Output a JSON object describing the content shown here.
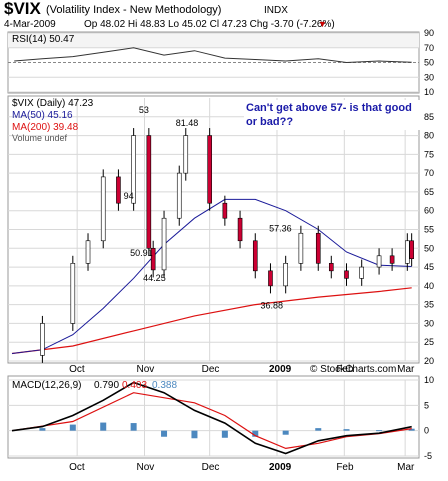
{
  "header": {
    "symbol": "$VIX",
    "name": "(Volatility Index - New Methodology)",
    "exchange": "INDX",
    "date": "4-Mar-2009",
    "quote": "Op 48.02  Hi 48.83  Lo 45.02  Cl 47.23  Chg -3.70 (-7.26%)",
    "chg_down_arrow": "▼",
    "watermark": "© StockCharts.com"
  },
  "colors": {
    "price_up": "#ffffff",
    "price_down": "#cc0033",
    "ma50": "#1a1a99",
    "ma200": "#dd1111",
    "macd_line": "#000000",
    "signal_line": "#dd1111",
    "histogram": "#4c88bf",
    "rsi_line": "#333333",
    "rsi_overbought_fill": "#5aa05a",
    "annotation_text": "#1a1aa8",
    "grid": "#d8d8d8"
  },
  "chart_data": [
    {
      "type": "line",
      "panel": "rsi",
      "label": "RSI(14) 50.47",
      "ylim": [
        10,
        90
      ],
      "y_ticks": [
        90,
        70,
        50,
        30,
        10
      ],
      "x": [
        "2008-09-02",
        "2008-09-15",
        "2008-09-29",
        "2008-10-13",
        "2008-10-27",
        "2008-11-10",
        "2008-11-24",
        "2008-12-08",
        "2008-12-22",
        "2009-01-05",
        "2009-01-20",
        "2009-02-02",
        "2009-02-17",
        "2009-03-04"
      ],
      "values": [
        52,
        55,
        58,
        64,
        70,
        60,
        66,
        56,
        54,
        52,
        55,
        50,
        52,
        50.47
      ]
    },
    {
      "type": "candlestick",
      "panel": "price",
      "legend": [
        "$VIX (Daily) 47.23",
        "MA(50) 45.16",
        "MA(200) 39.48",
        "Volume undef"
      ],
      "ylim": [
        20,
        90
      ],
      "y_ticks": [
        85,
        80,
        75,
        70,
        65,
        60,
        55,
        50,
        45,
        40,
        35,
        30,
        25,
        20
      ],
      "x_ticks": [
        "Oct",
        "Nov",
        "Dec",
        "2009",
        "Feb",
        "Mar"
      ],
      "annotations": [
        {
          "text": "81.48",
          "x": "2008-11-20",
          "y": 81.48
        },
        {
          "text": "50.91",
          "x": "2008-10-30",
          "y": 50.91
        },
        {
          "text": "44.25",
          "x": "2008-11-05",
          "y": 44.25
        },
        {
          "text": "57.36",
          "x": "2009-01-02",
          "y": 57.36
        },
        {
          "text": "36.88",
          "x": "2008-12-29",
          "y": 36.88
        },
        {
          "text": "53",
          "x": "2008-11-03",
          "y": 85
        },
        {
          "text": "94",
          "x": "2008-10-27",
          "y": 62
        },
        {
          "text": "Can't get above 57- is that good or bad??",
          "x": "2009-02-10",
          "y": 82
        }
      ],
      "close": [
        {
          "x": "2008-09-01",
          "y": 21.5
        },
        {
          "x": "2008-09-15",
          "y": 30
        },
        {
          "x": "2008-09-29",
          "y": 46
        },
        {
          "x": "2008-10-06",
          "y": 52
        },
        {
          "x": "2008-10-13",
          "y": 69
        },
        {
          "x": "2008-10-20",
          "y": 62
        },
        {
          "x": "2008-10-27",
          "y": 80
        },
        {
          "x": "2008-11-03",
          "y": 50
        },
        {
          "x": "2008-11-05",
          "y": 44.25
        },
        {
          "x": "2008-11-10",
          "y": 58
        },
        {
          "x": "2008-11-17",
          "y": 70
        },
        {
          "x": "2008-11-20",
          "y": 80
        },
        {
          "x": "2008-12-01",
          "y": 62
        },
        {
          "x": "2008-12-08",
          "y": 58
        },
        {
          "x": "2008-12-15",
          "y": 52
        },
        {
          "x": "2008-12-22",
          "y": 44
        },
        {
          "x": "2008-12-29",
          "y": 40
        },
        {
          "x": "2009-01-05",
          "y": 46
        },
        {
          "x": "2009-01-12",
          "y": 54
        },
        {
          "x": "2009-01-20",
          "y": 46
        },
        {
          "x": "2009-01-26",
          "y": 44
        },
        {
          "x": "2009-02-02",
          "y": 42
        },
        {
          "x": "2009-02-09",
          "y": 45
        },
        {
          "x": "2009-02-17",
          "y": 48
        },
        {
          "x": "2009-02-23",
          "y": 46
        },
        {
          "x": "2009-03-02",
          "y": 52
        },
        {
          "x": "2009-03-04",
          "y": 47.23
        }
      ],
      "ma50": [
        {
          "x": "2008-09-01",
          "y": 22
        },
        {
          "x": "2008-09-15",
          "y": 23
        },
        {
          "x": "2008-09-29",
          "y": 27
        },
        {
          "x": "2008-10-13",
          "y": 34
        },
        {
          "x": "2008-10-27",
          "y": 42
        },
        {
          "x": "2008-11-10",
          "y": 51
        },
        {
          "x": "2008-11-24",
          "y": 58
        },
        {
          "x": "2008-12-08",
          "y": 63
        },
        {
          "x": "2008-12-22",
          "y": 63
        },
        {
          "x": "2009-01-05",
          "y": 60
        },
        {
          "x": "2009-01-20",
          "y": 55
        },
        {
          "x": "2009-02-02",
          "y": 49
        },
        {
          "x": "2009-02-17",
          "y": 45.5
        },
        {
          "x": "2009-03-04",
          "y": 45.16
        }
      ],
      "ma200": [
        {
          "x": "2008-09-01",
          "y": 22
        },
        {
          "x": "2008-09-29",
          "y": 24
        },
        {
          "x": "2008-10-27",
          "y": 28
        },
        {
          "x": "2008-11-24",
          "y": 32
        },
        {
          "x": "2008-12-22",
          "y": 35
        },
        {
          "x": "2009-01-20",
          "y": 37
        },
        {
          "x": "2009-02-17",
          "y": 38.5
        },
        {
          "x": "2009-03-04",
          "y": 39.48
        }
      ]
    },
    {
      "type": "line",
      "panel": "macd",
      "label": [
        "MACD(12,26,9)",
        "0.790",
        "0.403",
        "0.388"
      ],
      "ylim": [
        -5,
        10
      ],
      "y_ticks": [
        10,
        5,
        0,
        -5
      ],
      "x_ticks": [
        "Oct",
        "Nov",
        "Dec",
        "2009",
        "Feb",
        "Mar"
      ],
      "macd": [
        {
          "x": "2008-09-01",
          "y": 0
        },
        {
          "x": "2008-09-15",
          "y": 0.8
        },
        {
          "x": "2008-09-29",
          "y": 3
        },
        {
          "x": "2008-10-13",
          "y": 6
        },
        {
          "x": "2008-10-27",
          "y": 9.5
        },
        {
          "x": "2008-11-10",
          "y": 7.5
        },
        {
          "x": "2008-11-24",
          "y": 4
        },
        {
          "x": "2008-12-08",
          "y": 1.5
        },
        {
          "x": "2008-12-22",
          "y": -2.5
        },
        {
          "x": "2009-01-05",
          "y": -4.5
        },
        {
          "x": "2009-01-20",
          "y": -2
        },
        {
          "x": "2009-02-02",
          "y": -1
        },
        {
          "x": "2009-02-17",
          "y": -0.5
        },
        {
          "x": "2009-03-04",
          "y": 0.79
        }
      ],
      "signal": [
        {
          "x": "2008-09-01",
          "y": 0
        },
        {
          "x": "2008-09-29",
          "y": 1.8
        },
        {
          "x": "2008-10-27",
          "y": 7.5
        },
        {
          "x": "2008-11-24",
          "y": 5.5
        },
        {
          "x": "2008-12-08",
          "y": 3
        },
        {
          "x": "2008-12-22",
          "y": -1
        },
        {
          "x": "2009-01-05",
          "y": -3.5
        },
        {
          "x": "2009-01-20",
          "y": -2.5
        },
        {
          "x": "2009-02-02",
          "y": -1.2
        },
        {
          "x": "2009-02-17",
          "y": -0.6
        },
        {
          "x": "2009-03-04",
          "y": 0.403
        }
      ],
      "histogram": [
        {
          "x": "2008-09-15",
          "y": 0.5
        },
        {
          "x": "2008-09-29",
          "y": 1.2
        },
        {
          "x": "2008-10-13",
          "y": 1.6
        },
        {
          "x": "2008-10-27",
          "y": 1.5
        },
        {
          "x": "2008-11-10",
          "y": -1.2
        },
        {
          "x": "2008-11-24",
          "y": -1.5
        },
        {
          "x": "2008-12-08",
          "y": -1.4
        },
        {
          "x": "2008-12-22",
          "y": -1.2
        },
        {
          "x": "2009-01-05",
          "y": -0.8
        },
        {
          "x": "2009-01-20",
          "y": 0.5
        },
        {
          "x": "2009-02-02",
          "y": 0.3
        },
        {
          "x": "2009-02-17",
          "y": 0.1
        },
        {
          "x": "2009-03-04",
          "y": 0.388
        }
      ]
    }
  ]
}
